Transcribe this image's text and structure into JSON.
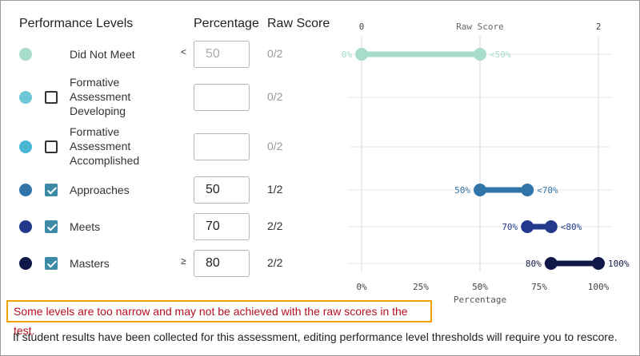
{
  "headers": {
    "levels": "Performance Levels",
    "percentage": "Percentage",
    "raw": "Raw Score"
  },
  "levels": [
    {
      "name": "Did Not Meet",
      "color": "#a8dcca",
      "checkbox": "none",
      "operator": "<",
      "value": "50",
      "input_disabled": true,
      "raw": "0/2",
      "raw_dim": true,
      "range": {
        "from_pct": 0,
        "to_pct": 50,
        "label_from": "0%",
        "label_to": "<50%"
      }
    },
    {
      "name": "Formative Assessment Developing",
      "color": "#6ec7d4",
      "checkbox": "unchecked",
      "operator": "",
      "value": "",
      "input_disabled": false,
      "raw": "0/2",
      "raw_dim": true,
      "range": null
    },
    {
      "name": "Formative Assessment Accomplished",
      "color": "#4bb5d8",
      "checkbox": "unchecked",
      "operator": "",
      "value": "",
      "input_disabled": false,
      "raw": "0/2",
      "raw_dim": true,
      "range": null
    },
    {
      "name": "Approaches",
      "color": "#3175a8",
      "checkbox": "checked",
      "operator": "",
      "value": "50",
      "input_disabled": false,
      "raw": "1/2",
      "raw_dim": false,
      "range": {
        "from_pct": 50,
        "to_pct": 70,
        "label_from": "50%",
        "label_to": "<70%"
      }
    },
    {
      "name": "Meets",
      "color": "#233a8c",
      "checkbox": "checked",
      "operator": "",
      "value": "70",
      "input_disabled": false,
      "raw": "2/2",
      "raw_dim": false,
      "range": {
        "from_pct": 70,
        "to_pct": 80,
        "label_from": "70%",
        "label_to": "<80%"
      }
    },
    {
      "name": "Masters",
      "color": "#101848",
      "checkbox": "checked",
      "operator": "≥",
      "value": "80",
      "input_disabled": false,
      "raw": "2/2",
      "raw_dim": false,
      "range": {
        "from_pct": 80,
        "to_pct": 100,
        "label_from": "80%",
        "label_to": "100%"
      }
    }
  ],
  "chart": {
    "top_axis_title": "Raw Score",
    "top_ticks": [
      "0",
      "2"
    ],
    "bottom_axis_title": "Percentage",
    "bottom_ticks": [
      "0%",
      "25%",
      "50%",
      "75%",
      "100%"
    ],
    "bottom_tick_values": [
      0,
      25,
      50,
      75,
      100
    ],
    "gridline_values": [
      0,
      50,
      100
    ]
  },
  "warning": "Some levels are too narrow and may not be achieved with the raw scores in the test.",
  "note": "If student results have been collected for this assessment, editing performance level thresholds will require you to rescore."
}
